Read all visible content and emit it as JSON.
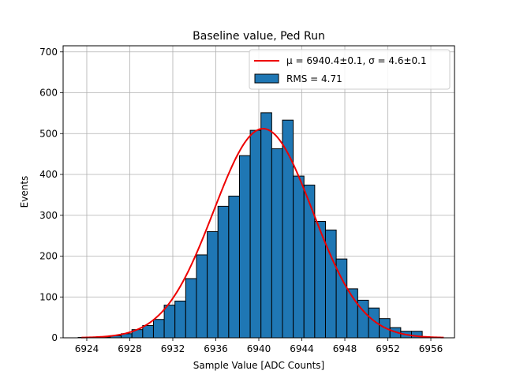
{
  "chart_data": {
    "type": "bar",
    "title": "Baseline value, Ped Run",
    "xlabel": "Sample Value [ADC Counts]",
    "ylabel": "Events",
    "xlim": [
      6921.8,
      6958.2
    ],
    "ylim": [
      0,
      715
    ],
    "xticks": [
      6924,
      6928,
      6932,
      6936,
      6940,
      6944,
      6948,
      6952,
      6956
    ],
    "yticks": [
      0,
      100,
      200,
      300,
      400,
      500,
      600,
      700
    ],
    "grid": true,
    "legend_position": "upper right",
    "bin_width": 1,
    "bins": [
      {
        "x": 6923.7,
        "value": 1
      },
      {
        "x": 6924.7,
        "value": 1
      },
      {
        "x": 6925.7,
        "value": 2
      },
      {
        "x": 6926.7,
        "value": 5
      },
      {
        "x": 6927.7,
        "value": 10
      },
      {
        "x": 6928.7,
        "value": 20
      },
      {
        "x": 6929.7,
        "value": 30
      },
      {
        "x": 6930.7,
        "value": 45
      },
      {
        "x": 6931.7,
        "value": 80
      },
      {
        "x": 6932.7,
        "value": 90
      },
      {
        "x": 6933.7,
        "value": 145
      },
      {
        "x": 6934.7,
        "value": 203
      },
      {
        "x": 6935.7,
        "value": 260
      },
      {
        "x": 6936.7,
        "value": 322
      },
      {
        "x": 6937.7,
        "value": 347
      },
      {
        "x": 6938.7,
        "value": 446
      },
      {
        "x": 6939.7,
        "value": 508
      },
      {
        "x": 6940.7,
        "value": 551
      },
      {
        "x": 6941.7,
        "value": 463
      },
      {
        "x": 6942.7,
        "value": 533
      },
      {
        "x": 6943.7,
        "value": 396
      },
      {
        "x": 6944.7,
        "value": 374
      },
      {
        "x": 6945.7,
        "value": 285
      },
      {
        "x": 6946.7,
        "value": 264
      },
      {
        "x": 6947.7,
        "value": 193
      },
      {
        "x": 6948.7,
        "value": 120
      },
      {
        "x": 6949.7,
        "value": 92
      },
      {
        "x": 6950.7,
        "value": 73
      },
      {
        "x": 6951.7,
        "value": 47
      },
      {
        "x": 6952.7,
        "value": 25
      },
      {
        "x": 6953.7,
        "value": 16
      },
      {
        "x": 6954.7,
        "value": 16
      }
    ],
    "fit": {
      "mu": 6940.4,
      "sigma": 4.6,
      "amplitude": 512,
      "x_range": [
        6923.5,
        6957.2
      ]
    },
    "legend": [
      {
        "label": "μ = 6940.4±0.1, σ = 4.6±0.1",
        "type": "line",
        "color": "#ee0000"
      },
      {
        "label": "RMS = 4.71",
        "type": "patch",
        "color": "#1f77b4"
      }
    ],
    "colors": {
      "bar_fill": "#1f77b4",
      "bar_edge": "#000000",
      "fit_line": "#ee0000",
      "grid": "#b0b0b0"
    }
  }
}
